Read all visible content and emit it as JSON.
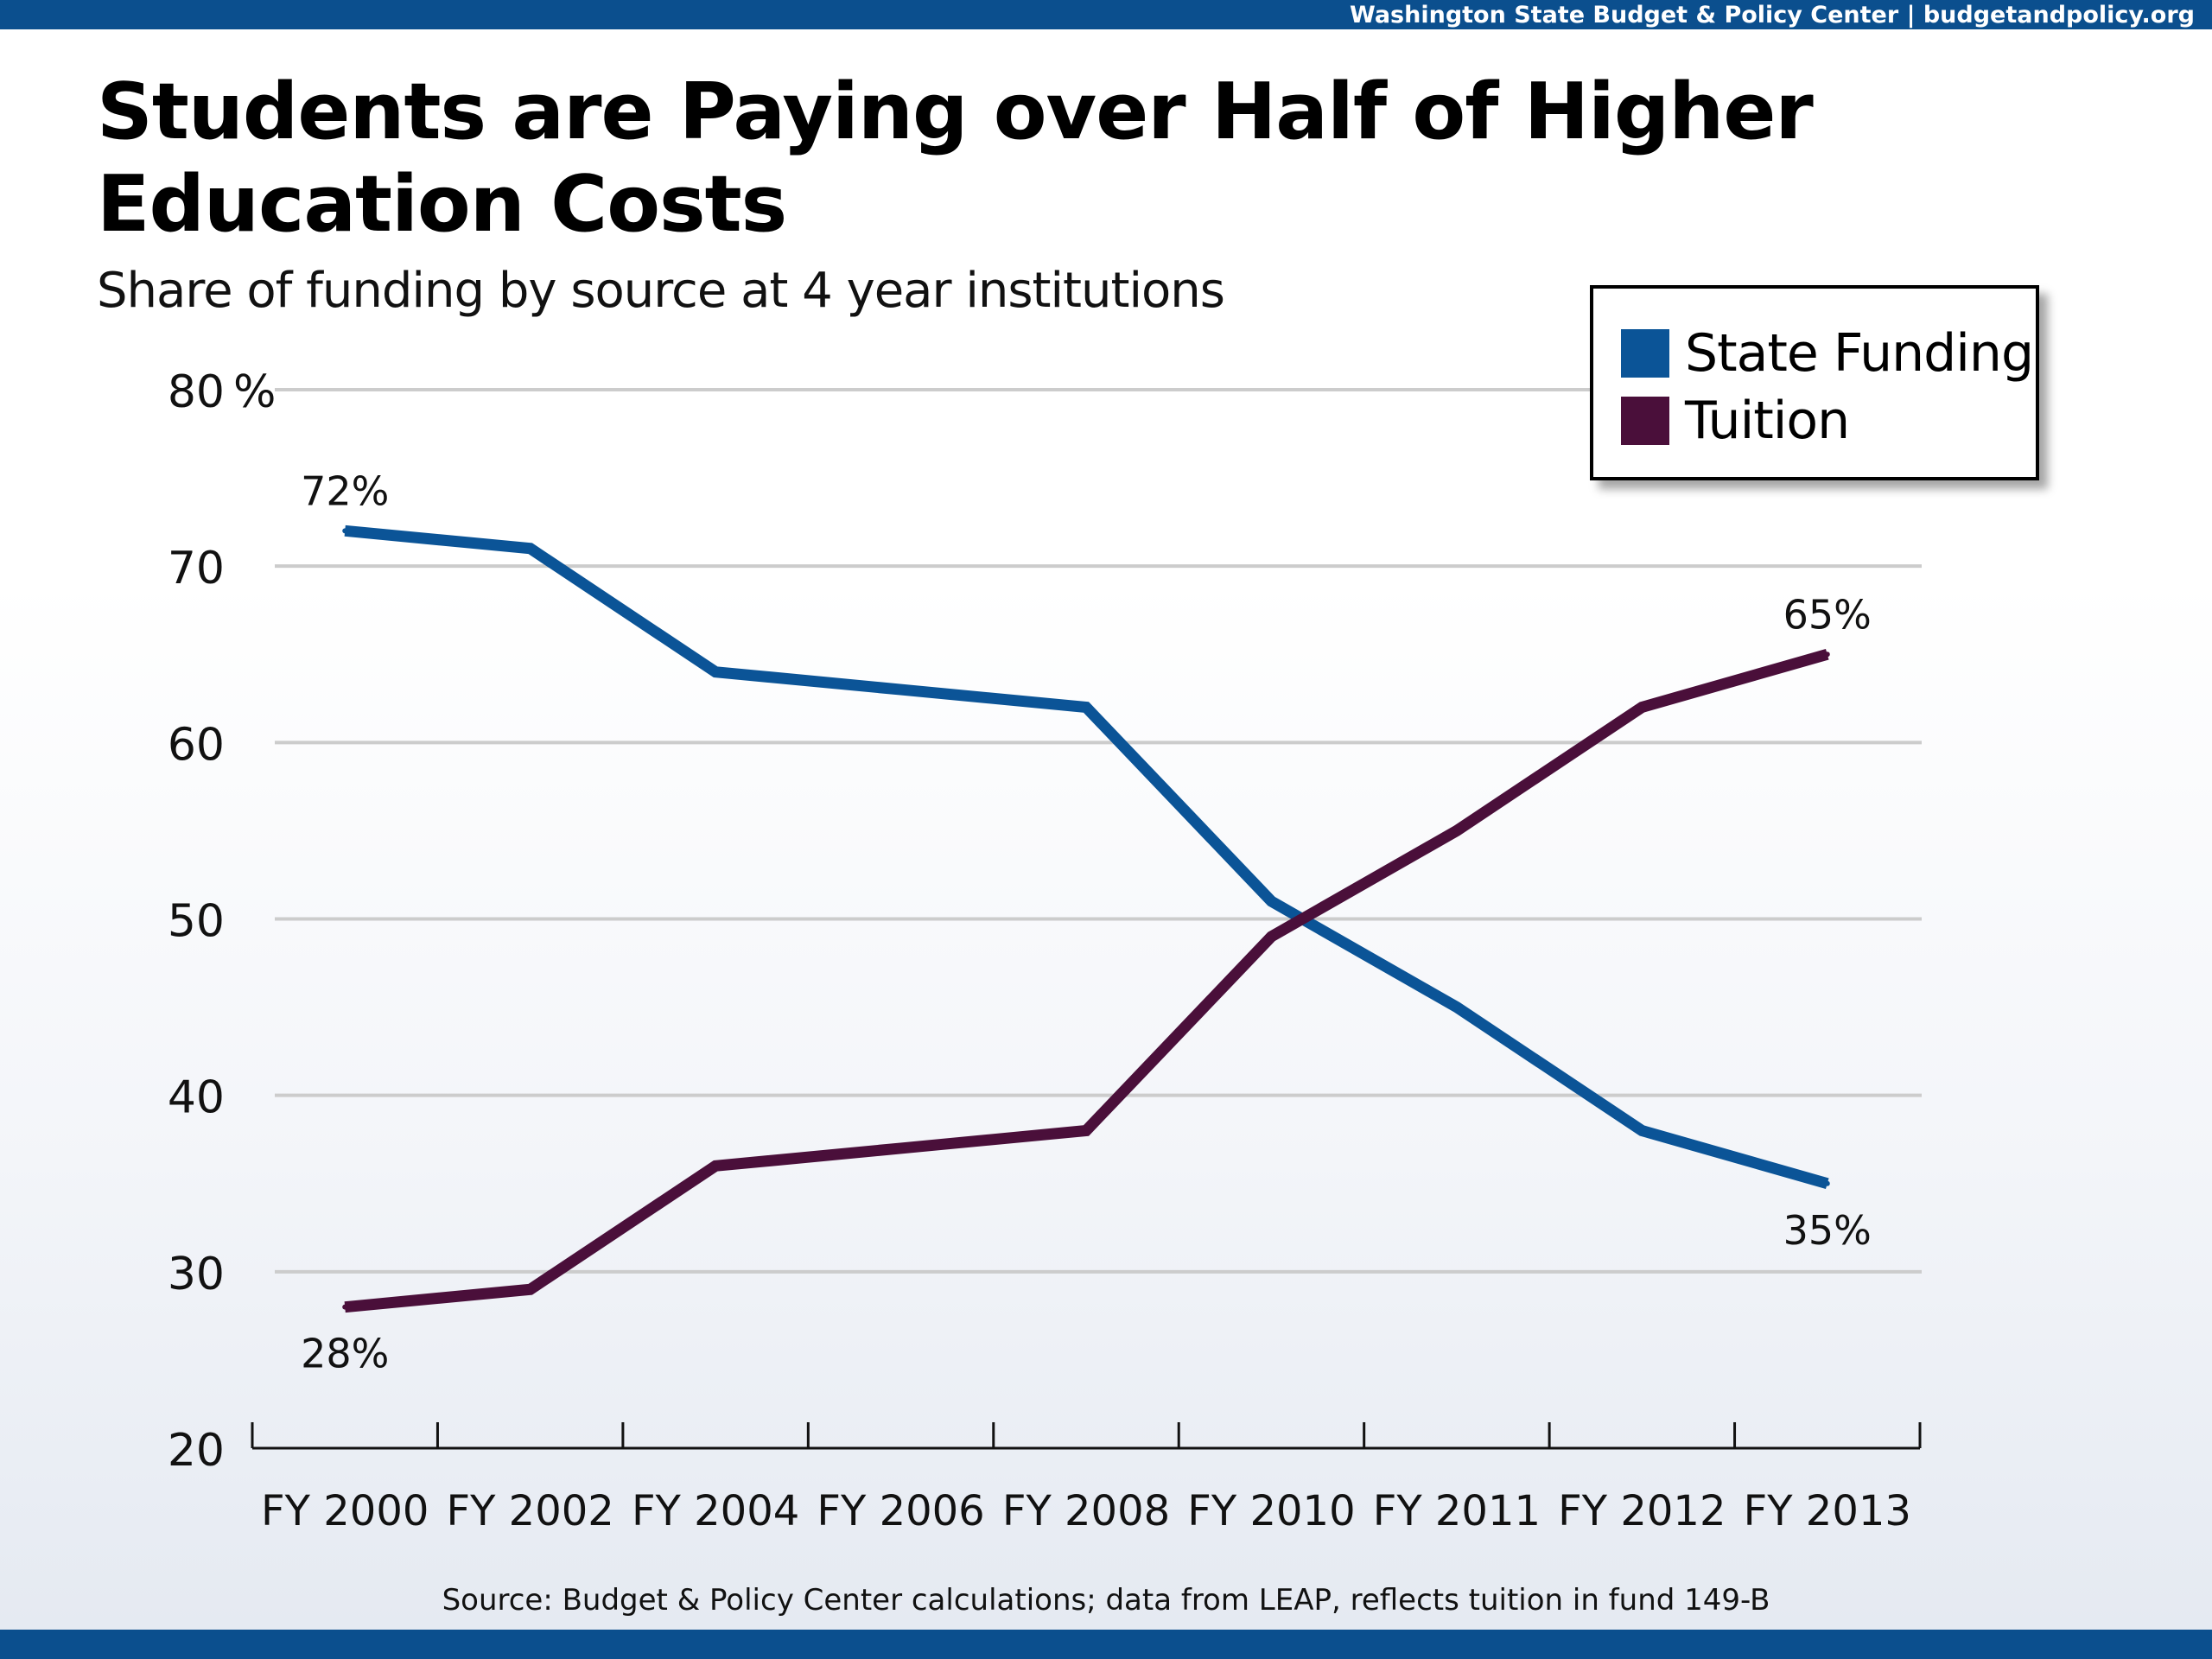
{
  "header": {
    "credit": "Washington State Budget & Policy Center | budgetandpolicy.org"
  },
  "colors": {
    "top_bar": "#0b4f8e",
    "state_funding": "#0b5497",
    "tuition": "#4a0f3a",
    "gridline": "#cccccc"
  },
  "chart_data": {
    "type": "line",
    "title": "Students are Paying over Half of Higher Education Costs",
    "subtitle": "Share of funding by source at 4 year institutions",
    "categories": [
      "FY 2000",
      "FY 2002",
      "FY 2004",
      "FY 2006",
      "FY 2008",
      "FY 2010",
      "FY 2011",
      "FY 2012",
      "FY 2013"
    ],
    "series": [
      {
        "name": "State Funding",
        "values": [
          72,
          71,
          64,
          63,
          62,
          51,
          45,
          38,
          35
        ]
      },
      {
        "name": "Tuition",
        "values": [
          28,
          29,
          36,
          37,
          38,
          49,
          55,
          62,
          65
        ]
      }
    ],
    "ylim": [
      20,
      80
    ],
    "yticks": [
      20,
      30,
      40,
      50,
      60,
      70,
      80
    ],
    "ytick_labels": [
      "20",
      "30",
      "40",
      "50",
      "60",
      "70",
      "80"
    ],
    "y_unit_label": "%",
    "grid": true,
    "legend_position": "top-right",
    "annotations": [
      {
        "series": "State Funding",
        "category": "FY 2000",
        "text": "72%"
      },
      {
        "series": "Tuition",
        "category": "FY 2000",
        "text": "28%"
      },
      {
        "series": "Tuition",
        "category": "FY 2013",
        "text": "65%"
      },
      {
        "series": "State Funding",
        "category": "FY 2013",
        "text": "35%"
      }
    ]
  },
  "source": "Source: Budget & Policy Center calculations; data from LEAP, reflects tuition in fund 149-B"
}
